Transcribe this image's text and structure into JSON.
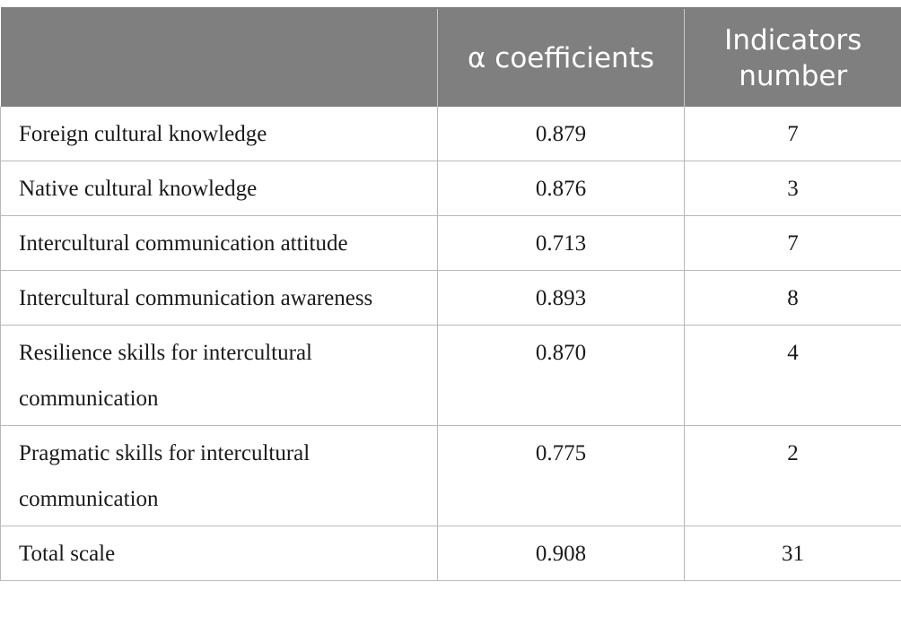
{
  "table": {
    "headers": [
      "",
      "α coefficients",
      "Indicators number"
    ],
    "rows": [
      [
        "Foreign cultural knowledge",
        "0.879",
        "7"
      ],
      [
        "Native cultural knowledge",
        "0.876",
        "3"
      ],
      [
        "Intercultural communication attitude",
        "0.713",
        "7"
      ],
      [
        "Intercultural communication awareness",
        "0.893",
        "8"
      ],
      [
        "Resilience skills for intercultural communication",
        "0.870",
        "4"
      ],
      [
        "Pragmatic skills for intercultural communication",
        "0.775",
        "2"
      ],
      [
        "Total scale",
        "0.908",
        "31"
      ]
    ]
  },
  "colors": {
    "header_background": "#7f7f7f",
    "header_text": "#ffffff",
    "border": "#b9b9b9"
  }
}
